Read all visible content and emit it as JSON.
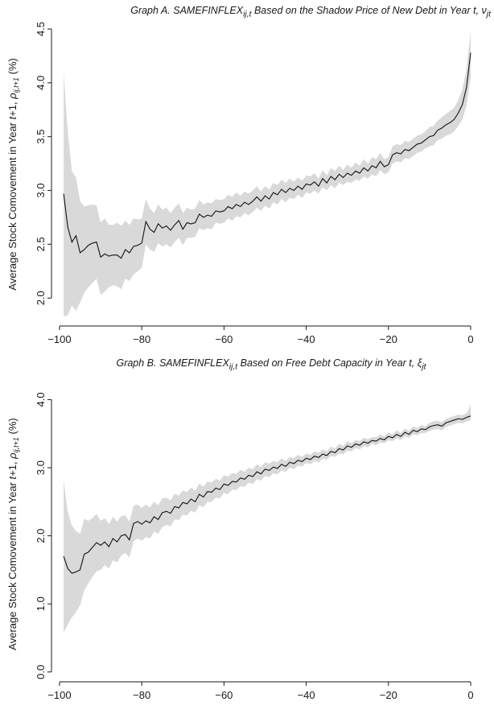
{
  "chart_data": [
    {
      "type": "area",
      "id": "A",
      "title": "Graph A. SAMEFINFLEXᵢⱼ,ₜ Based on the Shadow Price of New Debt in Year t, νⱼₜ",
      "title_parts": {
        "pre": "Graph A. SAMEFINFLEX",
        "sub1": "ij,t",
        "mid": " Based on the Shadow Price of New Debt in Year t, ",
        "sym": "ν",
        "sub2": "jt"
      },
      "ylabel": "Average Stock Comovement in Year t+1, ρij,t+1 (%)",
      "ylabel_parts": {
        "pre": "Average Stock Comovement in Year ",
        "t1": "t",
        "mid": "+1, ",
        "rho": "ρ",
        "sub": "ij,t+1",
        "post": " (%)"
      },
      "xlabel": "",
      "xlim": [
        -100,
        0
      ],
      "ylim": [
        1.8,
        4.5
      ],
      "xticks": [
        "−100",
        "−80",
        "−60",
        "−40",
        "−20",
        "0"
      ],
      "xtick_values": [
        -100,
        -80,
        -60,
        -40,
        -20,
        0
      ],
      "yticks": [
        "2.0",
        "2.5",
        "3.0",
        "3.5",
        "4.0",
        "4.5"
      ],
      "ytick_values": [
        2.0,
        2.5,
        3.0,
        3.5,
        4.0,
        4.5
      ],
      "grid": false,
      "x": [
        -99,
        -98,
        -97,
        -96,
        -95,
        -94,
        -93,
        -92,
        -91,
        -90,
        -89,
        -88,
        -87,
        -86,
        -85,
        -84,
        -83,
        -82,
        -81,
        -80,
        -79,
        -78,
        -77,
        -76,
        -75,
        -74,
        -73,
        -72,
        -71,
        -70,
        -69,
        -68,
        -67,
        -66,
        -65,
        -64,
        -63,
        -62,
        -61,
        -60,
        -59,
        -58,
        -57,
        -56,
        -55,
        -54,
        -53,
        -52,
        -51,
        -50,
        -49,
        -48,
        -47,
        -46,
        -45,
        -44,
        -43,
        -42,
        -41,
        -40,
        -39,
        -38,
        -37,
        -36,
        -35,
        -34,
        -33,
        -32,
        -31,
        -30,
        -29,
        -28,
        -27,
        -26,
        -25,
        -24,
        -23,
        -22,
        -21,
        -20,
        -19,
        -18,
        -17,
        -16,
        -15,
        -14,
        -13,
        -12,
        -11,
        -10,
        -9,
        -8,
        -7,
        -6,
        -5,
        -4,
        -3,
        -2,
        -1,
        0
      ],
      "mean": [
        2.97,
        2.66,
        2.52,
        2.58,
        2.42,
        2.45,
        2.49,
        2.51,
        2.52,
        2.38,
        2.41,
        2.39,
        2.4,
        2.4,
        2.37,
        2.45,
        2.42,
        2.48,
        2.49,
        2.51,
        2.71,
        2.64,
        2.61,
        2.69,
        2.65,
        2.67,
        2.63,
        2.68,
        2.72,
        2.64,
        2.7,
        2.69,
        2.7,
        2.78,
        2.75,
        2.77,
        2.76,
        2.81,
        2.8,
        2.81,
        2.85,
        2.83,
        2.87,
        2.85,
        2.89,
        2.87,
        2.9,
        2.94,
        2.9,
        2.95,
        2.92,
        2.98,
        2.96,
        3.01,
        2.98,
        3.02,
        3.0,
        3.04,
        3.01,
        3.06,
        3.05,
        3.08,
        3.04,
        3.11,
        3.07,
        3.13,
        3.1,
        3.15,
        3.12,
        3.16,
        3.14,
        3.18,
        3.16,
        3.21,
        3.18,
        3.23,
        3.21,
        3.27,
        3.22,
        3.24,
        3.33,
        3.35,
        3.34,
        3.38,
        3.37,
        3.4,
        3.43,
        3.44,
        3.47,
        3.5,
        3.51,
        3.56,
        3.58,
        3.61,
        3.63,
        3.66,
        3.72,
        3.8,
        3.96,
        4.28
      ],
      "lower": [
        1.83,
        1.84,
        1.93,
        1.88,
        1.96,
        2.05,
        2.1,
        2.14,
        2.18,
        2.03,
        2.06,
        2.1,
        2.12,
        2.11,
        2.08,
        2.18,
        2.16,
        2.22,
        2.25,
        2.28,
        2.5,
        2.45,
        2.43,
        2.51,
        2.48,
        2.5,
        2.47,
        2.52,
        2.56,
        2.49,
        2.56,
        2.56,
        2.57,
        2.65,
        2.63,
        2.65,
        2.64,
        2.7,
        2.69,
        2.7,
        2.74,
        2.72,
        2.76,
        2.75,
        2.79,
        2.77,
        2.8,
        2.84,
        2.81,
        2.86,
        2.83,
        2.89,
        2.87,
        2.92,
        2.89,
        2.93,
        2.92,
        2.96,
        2.93,
        2.98,
        2.97,
        3.0,
        2.97,
        3.03,
        3.0,
        3.05,
        3.02,
        3.07,
        3.05,
        3.08,
        3.07,
        3.1,
        3.09,
        3.13,
        3.11,
        3.15,
        3.13,
        3.19,
        3.15,
        3.17,
        3.25,
        3.27,
        3.26,
        3.3,
        3.29,
        3.32,
        3.35,
        3.36,
        3.39,
        3.41,
        3.42,
        3.47,
        3.48,
        3.51,
        3.52,
        3.55,
        3.6,
        3.66,
        3.79,
        4.05
      ],
      "upper": [
        4.1,
        3.55,
        3.18,
        3.12,
        2.9,
        2.85,
        2.86,
        2.87,
        2.86,
        2.7,
        2.74,
        2.68,
        2.68,
        2.7,
        2.67,
        2.72,
        2.68,
        2.74,
        2.73,
        2.74,
        2.92,
        2.83,
        2.79,
        2.87,
        2.82,
        2.84,
        2.79,
        2.84,
        2.88,
        2.79,
        2.84,
        2.82,
        2.83,
        2.91,
        2.87,
        2.89,
        2.88,
        2.92,
        2.91,
        2.92,
        2.96,
        2.94,
        2.98,
        2.95,
        2.99,
        2.97,
        3.0,
        3.04,
        2.99,
        3.04,
        3.01,
        3.07,
        3.05,
        3.1,
        3.07,
        3.11,
        3.08,
        3.12,
        3.09,
        3.14,
        3.13,
        3.16,
        3.11,
        3.19,
        3.14,
        3.21,
        3.18,
        3.23,
        3.19,
        3.24,
        3.21,
        3.26,
        3.23,
        3.29,
        3.25,
        3.31,
        3.29,
        3.35,
        3.29,
        3.31,
        3.41,
        3.43,
        3.42,
        3.46,
        3.45,
        3.48,
        3.51,
        3.52,
        3.55,
        3.59,
        3.6,
        3.65,
        3.68,
        3.71,
        3.74,
        3.77,
        3.84,
        3.94,
        4.13,
        4.48
      ]
    },
    {
      "type": "area",
      "id": "B",
      "title": "Graph B. SAMEFINFLEXᵢⱼ,ₜ Based on Free Debt Capacity in Year t, ξⱼₜ",
      "title_parts": {
        "pre": "Graph B. SAMEFINFLEX",
        "sub1": "ij,t",
        "mid": " Based on Free Debt Capacity in Year t, ",
        "sym": "ξ",
        "sub2": "jt"
      },
      "ylabel": "Average Stock Comovement in Year t+1, ρij,t+1 (%)",
      "ylabel_parts": {
        "pre": "Average Stock Comovement in Year ",
        "t1": "t",
        "mid": "+1, ",
        "rho": "ρ",
        "sub": "ij,t+1",
        "post": " (%)"
      },
      "xlabel": "",
      "xlim": [
        -100,
        0
      ],
      "ylim": [
        -0.05,
        4.1
      ],
      "xticks": [
        "−100",
        "−80",
        "−60",
        "−40",
        "−20",
        "0"
      ],
      "xtick_values": [
        -100,
        -80,
        -60,
        -40,
        -20,
        0
      ],
      "yticks": [
        "0.0",
        "1.0",
        "2.0",
        "3.0",
        "4.0"
      ],
      "ytick_values": [
        0.0,
        1.0,
        2.0,
        3.0,
        4.0
      ],
      "grid": false,
      "x": [
        -99,
        -98,
        -97,
        -96,
        -95,
        -94,
        -93,
        -92,
        -91,
        -90,
        -89,
        -88,
        -87,
        -86,
        -85,
        -84,
        -83,
        -82,
        -81,
        -80,
        -79,
        -78,
        -77,
        -76,
        -75,
        -74,
        -73,
        -72,
        -71,
        -70,
        -69,
        -68,
        -67,
        -66,
        -65,
        -64,
        -63,
        -62,
        -61,
        -60,
        -59,
        -58,
        -57,
        -56,
        -55,
        -54,
        -53,
        -52,
        -51,
        -50,
        -49,
        -48,
        -47,
        -46,
        -45,
        -44,
        -43,
        -42,
        -41,
        -40,
        -39,
        -38,
        -37,
        -36,
        -35,
        -34,
        -33,
        -32,
        -31,
        -30,
        -29,
        -28,
        -27,
        -26,
        -25,
        -24,
        -23,
        -22,
        -21,
        -20,
        -19,
        -18,
        -17,
        -16,
        -15,
        -14,
        -13,
        -12,
        -11,
        -10,
        -9,
        -8,
        -7,
        -6,
        -5,
        -4,
        -3,
        -2,
        -1,
        0
      ],
      "mean": [
        1.7,
        1.52,
        1.45,
        1.47,
        1.5,
        1.73,
        1.76,
        1.83,
        1.9,
        1.86,
        1.91,
        1.84,
        1.96,
        1.91,
        2.0,
        2.02,
        1.94,
        2.18,
        2.21,
        2.17,
        2.22,
        2.19,
        2.28,
        2.24,
        2.34,
        2.36,
        2.33,
        2.43,
        2.41,
        2.49,
        2.47,
        2.54,
        2.5,
        2.61,
        2.57,
        2.65,
        2.64,
        2.7,
        2.68,
        2.76,
        2.74,
        2.8,
        2.79,
        2.85,
        2.83,
        2.89,
        2.87,
        2.94,
        2.91,
        2.98,
        2.96,
        3.01,
        2.99,
        3.05,
        3.02,
        3.08,
        3.06,
        3.11,
        3.09,
        3.14,
        3.12,
        3.17,
        3.15,
        3.2,
        3.18,
        3.24,
        3.22,
        3.28,
        3.26,
        3.32,
        3.3,
        3.35,
        3.33,
        3.38,
        3.36,
        3.4,
        3.39,
        3.43,
        3.41,
        3.46,
        3.44,
        3.49,
        3.46,
        3.52,
        3.49,
        3.55,
        3.53,
        3.57,
        3.56,
        3.6,
        3.62,
        3.63,
        3.61,
        3.66,
        3.68,
        3.7,
        3.72,
        3.71,
        3.74,
        3.76
      ],
      "lower": [
        0.58,
        0.7,
        0.8,
        0.88,
        0.98,
        1.2,
        1.3,
        1.4,
        1.48,
        1.5,
        1.57,
        1.52,
        1.64,
        1.61,
        1.71,
        1.75,
        1.68,
        1.92,
        1.96,
        1.93,
        1.98,
        1.96,
        2.06,
        2.03,
        2.13,
        2.16,
        2.14,
        2.24,
        2.23,
        2.31,
        2.3,
        2.37,
        2.34,
        2.45,
        2.42,
        2.5,
        2.5,
        2.56,
        2.55,
        2.63,
        2.61,
        2.68,
        2.67,
        2.73,
        2.72,
        2.78,
        2.76,
        2.83,
        2.81,
        2.88,
        2.86,
        2.92,
        2.9,
        2.96,
        2.94,
        3.0,
        2.98,
        3.03,
        3.02,
        3.07,
        3.05,
        3.1,
        3.08,
        3.13,
        3.12,
        3.17,
        3.16,
        3.21,
        3.2,
        3.25,
        3.24,
        3.29,
        3.27,
        3.32,
        3.3,
        3.35,
        3.33,
        3.37,
        3.36,
        3.4,
        3.39,
        3.43,
        3.41,
        3.46,
        3.44,
        3.49,
        3.48,
        3.51,
        3.51,
        3.54,
        3.56,
        3.57,
        3.55,
        3.6,
        3.62,
        3.64,
        3.66,
        3.65,
        3.68,
        3.7
      ],
      "upper": [
        2.82,
        2.35,
        2.15,
        2.07,
        2.03,
        2.25,
        2.22,
        2.26,
        2.32,
        2.22,
        2.26,
        2.17,
        2.28,
        2.21,
        2.29,
        2.3,
        2.21,
        2.44,
        2.46,
        2.41,
        2.46,
        2.42,
        2.5,
        2.45,
        2.55,
        2.56,
        2.52,
        2.62,
        2.59,
        2.67,
        2.64,
        2.71,
        2.66,
        2.77,
        2.72,
        2.8,
        2.78,
        2.84,
        2.81,
        2.89,
        2.87,
        2.92,
        2.91,
        2.97,
        2.94,
        3.0,
        2.98,
        3.05,
        3.01,
        3.08,
        3.06,
        3.1,
        3.08,
        3.14,
        3.1,
        3.16,
        3.14,
        3.19,
        3.16,
        3.21,
        3.19,
        3.24,
        3.22,
        3.27,
        3.24,
        3.31,
        3.28,
        3.35,
        3.32,
        3.39,
        3.36,
        3.41,
        3.39,
        3.44,
        3.42,
        3.45,
        3.45,
        3.49,
        3.46,
        3.52,
        3.49,
        3.55,
        3.51,
        3.58,
        3.54,
        3.61,
        3.58,
        3.63,
        3.61,
        3.66,
        3.68,
        3.69,
        3.67,
        3.72,
        3.74,
        3.76,
        3.78,
        3.77,
        3.8,
        3.92
      ]
    }
  ]
}
